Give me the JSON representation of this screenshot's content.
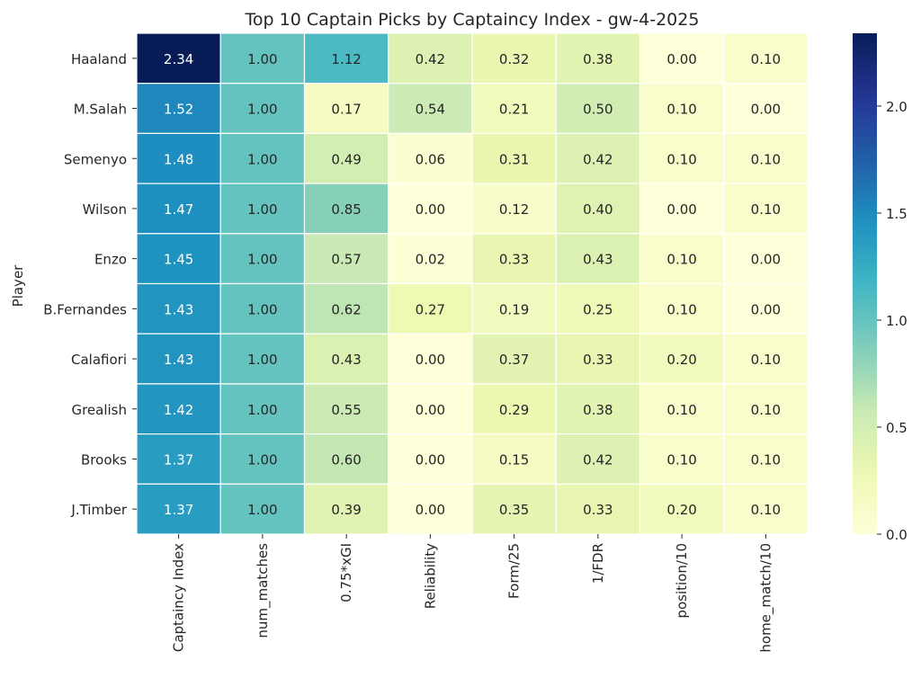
{
  "chart_data": {
    "type": "heatmap",
    "title": "Top 10 Captain Picks by Captaincy Index - gw-4-2025",
    "ylabel": "Player",
    "xlabel": "",
    "rows": [
      "Haaland",
      "M.Salah",
      "Semenyo",
      "Wilson",
      "Enzo",
      "B.Fernandes",
      "Calafiori",
      "Grealish",
      "Brooks",
      "J.Timber"
    ],
    "columns": [
      "Captaincy Index",
      "num_matches",
      "0.75*xGI",
      "Reliability",
      "Form/25",
      "1/FDR",
      "position/10",
      "home_match/10"
    ],
    "values": [
      [
        2.34,
        1.0,
        1.12,
        0.42,
        0.32,
        0.38,
        0.0,
        0.1
      ],
      [
        1.52,
        1.0,
        0.17,
        0.54,
        0.21,
        0.5,
        0.1,
        0.0
      ],
      [
        1.48,
        1.0,
        0.49,
        0.06,
        0.31,
        0.42,
        0.1,
        0.1
      ],
      [
        1.47,
        1.0,
        0.85,
        0.0,
        0.12,
        0.4,
        0.0,
        0.1
      ],
      [
        1.45,
        1.0,
        0.57,
        0.02,
        0.33,
        0.43,
        0.1,
        0.0
      ],
      [
        1.43,
        1.0,
        0.62,
        0.27,
        0.19,
        0.25,
        0.1,
        0.0
      ],
      [
        1.43,
        1.0,
        0.43,
        0.0,
        0.37,
        0.33,
        0.2,
        0.1
      ],
      [
        1.42,
        1.0,
        0.55,
        0.0,
        0.29,
        0.38,
        0.1,
        0.1
      ],
      [
        1.37,
        1.0,
        0.6,
        0.0,
        0.15,
        0.42,
        0.1,
        0.1
      ],
      [
        1.37,
        1.0,
        0.39,
        0.0,
        0.35,
        0.33,
        0.2,
        0.1
      ]
    ],
    "colormap": "YlGnBu",
    "vmin": 0.0,
    "vmax": 2.34,
    "colorbar_ticks": [
      0.0,
      0.5,
      1.0,
      1.5,
      2.0
    ],
    "colorbar_tick_labels": [
      "0.0",
      "0.5",
      "1.0",
      "1.5",
      "2.0"
    ],
    "grid_line_color": "#ffffff"
  }
}
